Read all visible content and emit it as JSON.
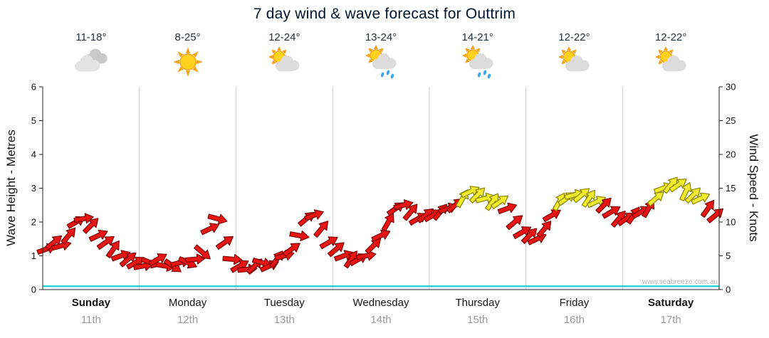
{
  "chart_data": {
    "type": "wind_wave_forecast",
    "title": "7 day wind & wave forecast for Outtrim",
    "watermark": "www.seabreeze.com.au",
    "left_axis": {
      "label": "Wave Height - Metres",
      "min": 0,
      "max": 6,
      "ticks": [
        0,
        1,
        2,
        3,
        4,
        5,
        6
      ]
    },
    "right_axis": {
      "label": "Wind Speed - Knots",
      "min": 0,
      "max": 30,
      "ticks": [
        0,
        5,
        10,
        15,
        20,
        25,
        30
      ]
    },
    "grid_color": "#cccccc",
    "axis_color": "#222222",
    "days": [
      {
        "name": "Sunday",
        "date": "11th",
        "temp": "11-18°",
        "icon": "cloudy",
        "bold": true
      },
      {
        "name": "Monday",
        "date": "12th",
        "temp": "8-25°",
        "icon": "sunny",
        "bold": false
      },
      {
        "name": "Tuesday",
        "date": "13th",
        "temp": "12-24°",
        "icon": "sun-cloud",
        "bold": false
      },
      {
        "name": "Wednesday",
        "date": "14th",
        "temp": "13-24°",
        "icon": "sun-cloud-rain",
        "bold": false
      },
      {
        "name": "Thursday",
        "date": "15th",
        "temp": "14-21°",
        "icon": "sun-cloud-rain",
        "bold": false
      },
      {
        "name": "Friday",
        "date": "16th",
        "temp": "12-22°",
        "icon": "sun-cloud",
        "bold": false
      },
      {
        "name": "Saturday",
        "date": "17th",
        "temp": "12-22°",
        "icon": "sun-cloud",
        "bold": true
      }
    ],
    "wave_height_m": {
      "style": "flat",
      "value": 0.1,
      "color": "#00cccc"
    },
    "wind_arrows": {
      "points_per_day": 13,
      "high_threshold_knots": 13,
      "color_low": "#e81414",
      "color_low_stroke": "#7d0000",
      "color_high": "#f2ec2e",
      "color_high_stroke": "#8c8400",
      "knots": [
        6,
        7,
        6.5,
        8,
        10,
        10.5,
        9.5,
        8,
        7,
        6,
        5,
        4.5,
        4,
        3.5,
        4,
        4.5,
        3.5,
        3.5,
        4,
        4,
        4.5,
        5.5,
        9,
        10.5,
        7,
        4.5,
        3.5,
        3,
        3.5,
        4,
        3.5,
        4.5,
        5,
        6,
        8,
        10.5,
        11,
        9,
        7,
        6,
        5,
        4.5,
        4.5,
        5,
        6.5,
        8,
        10,
        12,
        12.5,
        11.5,
        10.5,
        11,
        11,
        11.5,
        12,
        12.5,
        13.5,
        14.5,
        14,
        13.5,
        13,
        13,
        12,
        10,
        8.5,
        8,
        7.5,
        9,
        11,
        13,
        13.5,
        14,
        14,
        13.5,
        13,
        12.5,
        11.5,
        10.5,
        10.5,
        11,
        11.5,
        12,
        13.5,
        15,
        15.5,
        15.5,
        14.5,
        14,
        13.5,
        12,
        11
      ],
      "directions_deg": [
        -20,
        -40,
        -15,
        -50,
        -30,
        -10,
        -45,
        -25,
        -35,
        -55,
        -20,
        -40,
        -30,
        -10,
        20,
        -30,
        10,
        35,
        -15,
        25,
        -5,
        40,
        -25,
        15,
        -35,
        5,
        -30,
        -5,
        -45,
        15,
        -25,
        -55,
        -15,
        -35,
        10,
        -40,
        -20,
        -50,
        -30,
        -40,
        -20,
        -55,
        -30,
        -10,
        -45,
        -25,
        -60,
        -35,
        -15,
        -50,
        -30,
        -40,
        -30,
        -50,
        -20,
        -40,
        -60,
        -25,
        -45,
        -15,
        -55,
        -35,
        -20,
        -40,
        -30,
        -45,
        -25,
        -50,
        -30,
        -60,
        -35,
        -15,
        -40,
        -55,
        -25,
        -45,
        -30,
        -50,
        -35,
        -55,
        -30,
        -60,
        -40,
        -20,
        -50,
        -35,
        -65,
        -45,
        -25,
        -55,
        -40
      ]
    }
  }
}
